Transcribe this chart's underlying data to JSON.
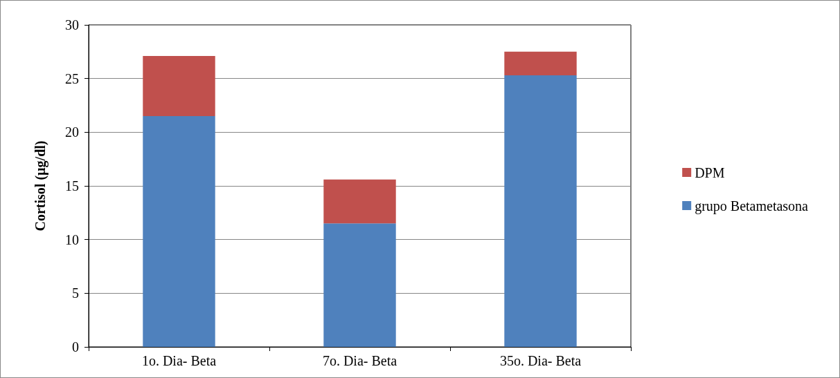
{
  "chart_data": {
    "type": "bar",
    "stacked": true,
    "ylabel": "Cortisol (µg/dl)",
    "categories": [
      "1o. Dia- Beta",
      "7o. Dia- Beta",
      "35o. Dia- Beta"
    ],
    "series": [
      {
        "name": "grupo Betametasona",
        "color": "#4f81bd",
        "values": [
          21.5,
          11.5,
          25.3
        ]
      },
      {
        "name": "DPM",
        "color": "#c0504d",
        "values": [
          5.6,
          4.1,
          2.2
        ]
      }
    ],
    "ylim": [
      0,
      30
    ],
    "yticks": [
      0,
      5,
      10,
      15,
      20,
      25,
      30
    ],
    "grid": "y",
    "legend": "right"
  }
}
